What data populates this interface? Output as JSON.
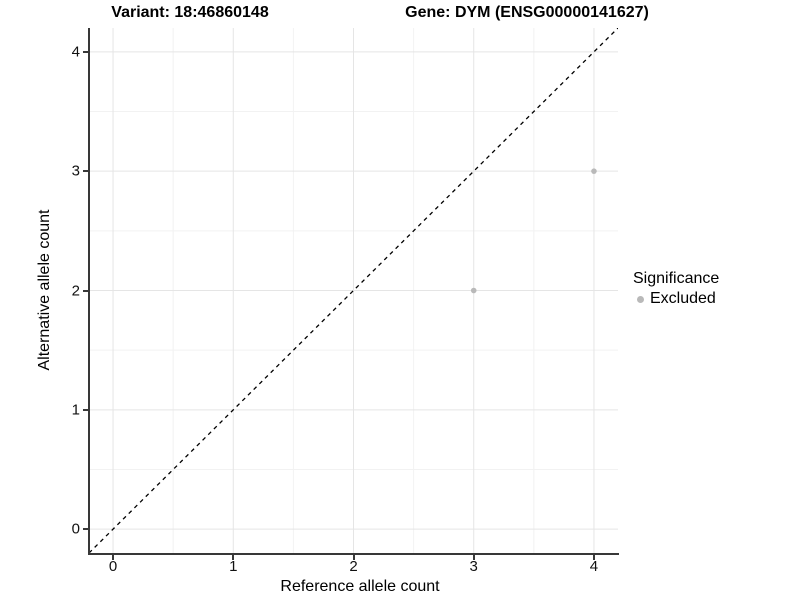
{
  "titles": {
    "variant": "Variant: 18:46860148",
    "gene": "Gene: DYM (ENSG00000141627)"
  },
  "chart_data": {
    "type": "scatter",
    "title": "Variant: 18:46860148 — Gene: DYM (ENSG00000141627)",
    "xlabel": "Reference allele count",
    "ylabel": "Alternative allele count",
    "xlim": [
      -0.2,
      4.2
    ],
    "ylim": [
      -0.2,
      4.2
    ],
    "x_ticks": [
      0,
      1,
      2,
      3,
      4
    ],
    "y_ticks": [
      0,
      1,
      2,
      3,
      4
    ],
    "minor_gridlines_x": [
      0.5,
      1.5,
      2.5,
      3.5
    ],
    "minor_gridlines_y": [
      0.5,
      1.5,
      2.5,
      3.5
    ],
    "grid": true,
    "series": [
      {
        "name": "Excluded",
        "points": [
          {
            "x": 3,
            "y": 2
          },
          {
            "x": 4,
            "y": 3
          }
        ]
      }
    ],
    "reference_line": {
      "kind": "identity",
      "style": "dashed",
      "x1": -0.2,
      "y1": -0.2,
      "x2": 4.2,
      "y2": 4.2
    },
    "legend": {
      "title": "Significance",
      "position": "right",
      "items": [
        {
          "label": "Excluded",
          "color": "#b9b9b9"
        }
      ]
    }
  },
  "colors": {
    "background": "#ffffff",
    "point": "#b9b9b9",
    "grid_major": "#e5e5e5",
    "grid_minor": "#f2f2f2",
    "axis_line": "#383838",
    "tick_text": "#111111",
    "reference_line": "#000000"
  }
}
